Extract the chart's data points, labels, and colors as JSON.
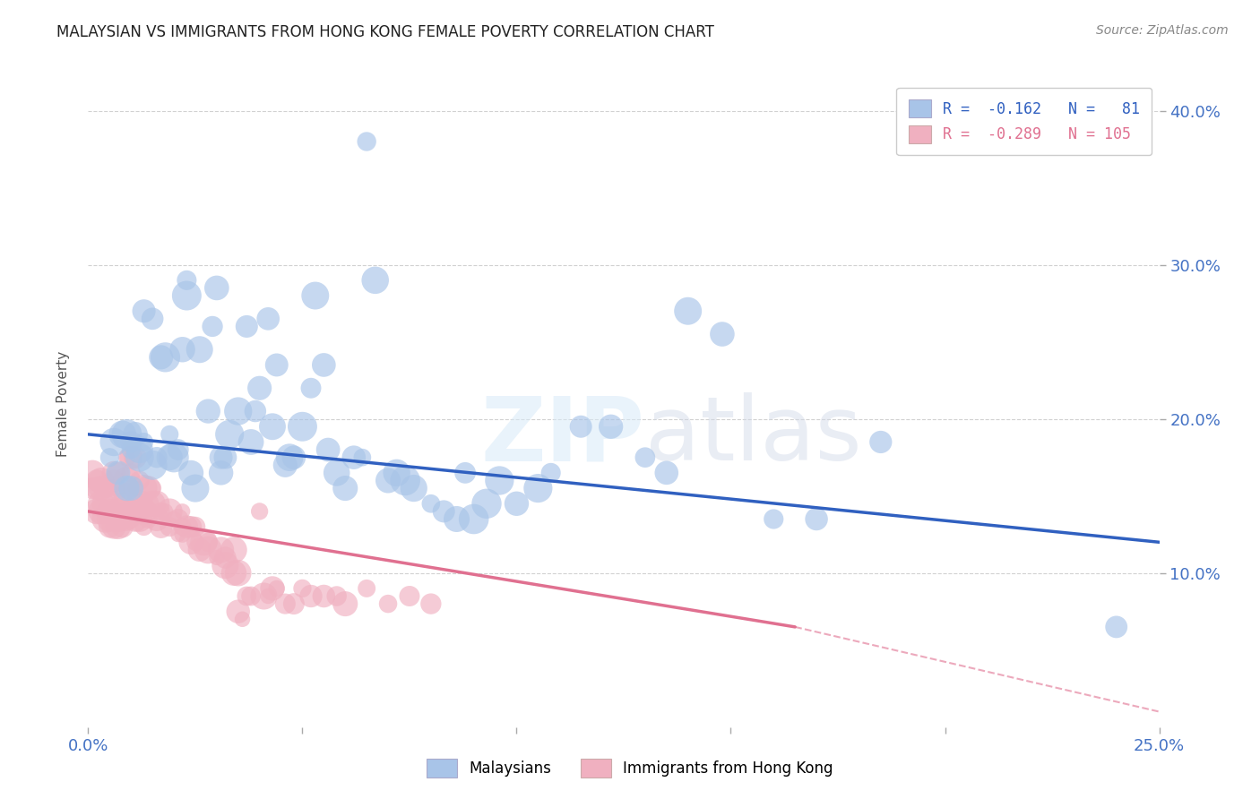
{
  "title": "MALAYSIAN VS IMMIGRANTS FROM HONG KONG FEMALE POVERTY CORRELATION CHART",
  "source": "Source: ZipAtlas.com",
  "ylabel_label": "Female Poverty",
  "xlim": [
    0.0,
    0.25
  ],
  "ylim": [
    0.0,
    0.42
  ],
  "legend_bottom": [
    "Malaysians",
    "Immigrants from Hong Kong"
  ],
  "blue_color": "#3060c0",
  "pink_color": "#e07090",
  "blue_dot_color": "#a8c4e8",
  "pink_dot_color": "#f0b0c0",
  "watermark_zip": "ZIP",
  "watermark_atlas": "atlas",
  "blue_trendline": [
    0.0,
    0.19,
    0.25,
    0.12
  ],
  "pink_trendline_solid": [
    0.0,
    0.14,
    0.165,
    0.065
  ],
  "pink_trendline_dashed": [
    0.165,
    0.065,
    0.25,
    0.01
  ],
  "blue_scatter": [
    [
      0.005,
      0.175
    ],
    [
      0.006,
      0.185
    ],
    [
      0.007,
      0.165
    ],
    [
      0.008,
      0.19
    ],
    [
      0.009,
      0.19
    ],
    [
      0.009,
      0.155
    ],
    [
      0.01,
      0.155
    ],
    [
      0.01,
      0.18
    ],
    [
      0.01,
      0.185
    ],
    [
      0.011,
      0.19
    ],
    [
      0.012,
      0.18
    ],
    [
      0.012,
      0.175
    ],
    [
      0.013,
      0.27
    ],
    [
      0.013,
      0.185
    ],
    [
      0.015,
      0.265
    ],
    [
      0.015,
      0.17
    ],
    [
      0.016,
      0.175
    ],
    [
      0.017,
      0.24
    ],
    [
      0.018,
      0.24
    ],
    [
      0.019,
      0.19
    ],
    [
      0.019,
      0.175
    ],
    [
      0.02,
      0.175
    ],
    [
      0.021,
      0.18
    ],
    [
      0.022,
      0.245
    ],
    [
      0.023,
      0.28
    ],
    [
      0.023,
      0.29
    ],
    [
      0.024,
      0.165
    ],
    [
      0.025,
      0.155
    ],
    [
      0.026,
      0.245
    ],
    [
      0.028,
      0.205
    ],
    [
      0.029,
      0.26
    ],
    [
      0.03,
      0.285
    ],
    [
      0.031,
      0.175
    ],
    [
      0.031,
      0.165
    ],
    [
      0.032,
      0.175
    ],
    [
      0.033,
      0.19
    ],
    [
      0.035,
      0.205
    ],
    [
      0.037,
      0.26
    ],
    [
      0.038,
      0.185
    ],
    [
      0.039,
      0.205
    ],
    [
      0.04,
      0.22
    ],
    [
      0.042,
      0.265
    ],
    [
      0.043,
      0.195
    ],
    [
      0.044,
      0.235
    ],
    [
      0.046,
      0.17
    ],
    [
      0.047,
      0.175
    ],
    [
      0.048,
      0.175
    ],
    [
      0.05,
      0.195
    ],
    [
      0.052,
      0.22
    ],
    [
      0.053,
      0.28
    ],
    [
      0.055,
      0.235
    ],
    [
      0.056,
      0.18
    ],
    [
      0.058,
      0.165
    ],
    [
      0.06,
      0.155
    ],
    [
      0.062,
      0.175
    ],
    [
      0.064,
      0.175
    ],
    [
      0.065,
      0.38
    ],
    [
      0.067,
      0.29
    ],
    [
      0.07,
      0.16
    ],
    [
      0.072,
      0.165
    ],
    [
      0.074,
      0.16
    ],
    [
      0.076,
      0.155
    ],
    [
      0.08,
      0.145
    ],
    [
      0.083,
      0.14
    ],
    [
      0.086,
      0.135
    ],
    [
      0.088,
      0.165
    ],
    [
      0.09,
      0.135
    ],
    [
      0.093,
      0.145
    ],
    [
      0.096,
      0.16
    ],
    [
      0.1,
      0.145
    ],
    [
      0.105,
      0.155
    ],
    [
      0.108,
      0.165
    ],
    [
      0.115,
      0.195
    ],
    [
      0.122,
      0.195
    ],
    [
      0.14,
      0.27
    ],
    [
      0.148,
      0.255
    ],
    [
      0.16,
      0.135
    ],
    [
      0.17,
      0.135
    ],
    [
      0.185,
      0.185
    ],
    [
      0.24,
      0.065
    ],
    [
      0.13,
      0.175
    ],
    [
      0.135,
      0.165
    ]
  ],
  "pink_scatter": [
    [
      0.001,
      0.155
    ],
    [
      0.001,
      0.165
    ],
    [
      0.002,
      0.14
    ],
    [
      0.002,
      0.155
    ],
    [
      0.002,
      0.16
    ],
    [
      0.003,
      0.14
    ],
    [
      0.003,
      0.145
    ],
    [
      0.003,
      0.155
    ],
    [
      0.003,
      0.16
    ],
    [
      0.004,
      0.135
    ],
    [
      0.004,
      0.14
    ],
    [
      0.004,
      0.145
    ],
    [
      0.004,
      0.155
    ],
    [
      0.005,
      0.13
    ],
    [
      0.005,
      0.135
    ],
    [
      0.005,
      0.14
    ],
    [
      0.005,
      0.155
    ],
    [
      0.006,
      0.13
    ],
    [
      0.006,
      0.135
    ],
    [
      0.006,
      0.14
    ],
    [
      0.006,
      0.145
    ],
    [
      0.006,
      0.16
    ],
    [
      0.006,
      0.165
    ],
    [
      0.007,
      0.13
    ],
    [
      0.007,
      0.135
    ],
    [
      0.007,
      0.14
    ],
    [
      0.007,
      0.155
    ],
    [
      0.007,
      0.165
    ],
    [
      0.008,
      0.13
    ],
    [
      0.008,
      0.135
    ],
    [
      0.008,
      0.145
    ],
    [
      0.009,
      0.135
    ],
    [
      0.009,
      0.15
    ],
    [
      0.009,
      0.16
    ],
    [
      0.009,
      0.175
    ],
    [
      0.01,
      0.135
    ],
    [
      0.01,
      0.14
    ],
    [
      0.01,
      0.155
    ],
    [
      0.01,
      0.165
    ],
    [
      0.01,
      0.175
    ],
    [
      0.01,
      0.185
    ],
    [
      0.011,
      0.135
    ],
    [
      0.011,
      0.14
    ],
    [
      0.011,
      0.155
    ],
    [
      0.011,
      0.175
    ],
    [
      0.012,
      0.135
    ],
    [
      0.012,
      0.145
    ],
    [
      0.012,
      0.16
    ],
    [
      0.013,
      0.13
    ],
    [
      0.013,
      0.14
    ],
    [
      0.013,
      0.155
    ],
    [
      0.014,
      0.135
    ],
    [
      0.014,
      0.145
    ],
    [
      0.014,
      0.155
    ],
    [
      0.015,
      0.145
    ],
    [
      0.015,
      0.155
    ],
    [
      0.016,
      0.135
    ],
    [
      0.016,
      0.145
    ],
    [
      0.017,
      0.13
    ],
    [
      0.017,
      0.14
    ],
    [
      0.018,
      0.14
    ],
    [
      0.019,
      0.13
    ],
    [
      0.019,
      0.14
    ],
    [
      0.02,
      0.135
    ],
    [
      0.021,
      0.125
    ],
    [
      0.021,
      0.135
    ],
    [
      0.022,
      0.125
    ],
    [
      0.022,
      0.13
    ],
    [
      0.022,
      0.14
    ],
    [
      0.023,
      0.13
    ],
    [
      0.024,
      0.12
    ],
    [
      0.024,
      0.13
    ],
    [
      0.025,
      0.12
    ],
    [
      0.025,
      0.13
    ],
    [
      0.026,
      0.115
    ],
    [
      0.027,
      0.12
    ],
    [
      0.028,
      0.115
    ],
    [
      0.028,
      0.12
    ],
    [
      0.03,
      0.11
    ],
    [
      0.031,
      0.115
    ],
    [
      0.032,
      0.105
    ],
    [
      0.032,
      0.11
    ],
    [
      0.034,
      0.1
    ],
    [
      0.034,
      0.115
    ],
    [
      0.035,
      0.075
    ],
    [
      0.035,
      0.1
    ],
    [
      0.036,
      0.07
    ],
    [
      0.037,
      0.085
    ],
    [
      0.038,
      0.085
    ],
    [
      0.04,
      0.14
    ],
    [
      0.041,
      0.085
    ],
    [
      0.042,
      0.085
    ],
    [
      0.043,
      0.09
    ],
    [
      0.044,
      0.09
    ],
    [
      0.046,
      0.08
    ],
    [
      0.048,
      0.08
    ],
    [
      0.05,
      0.09
    ],
    [
      0.052,
      0.085
    ],
    [
      0.055,
      0.085
    ],
    [
      0.058,
      0.085
    ],
    [
      0.06,
      0.08
    ],
    [
      0.065,
      0.09
    ],
    [
      0.07,
      0.08
    ],
    [
      0.075,
      0.085
    ],
    [
      0.08,
      0.08
    ]
  ],
  "background_color": "#ffffff",
  "grid_color": "#cccccc",
  "tick_color": "#4472c4",
  "title_color": "#222222",
  "source_color": "#888888"
}
